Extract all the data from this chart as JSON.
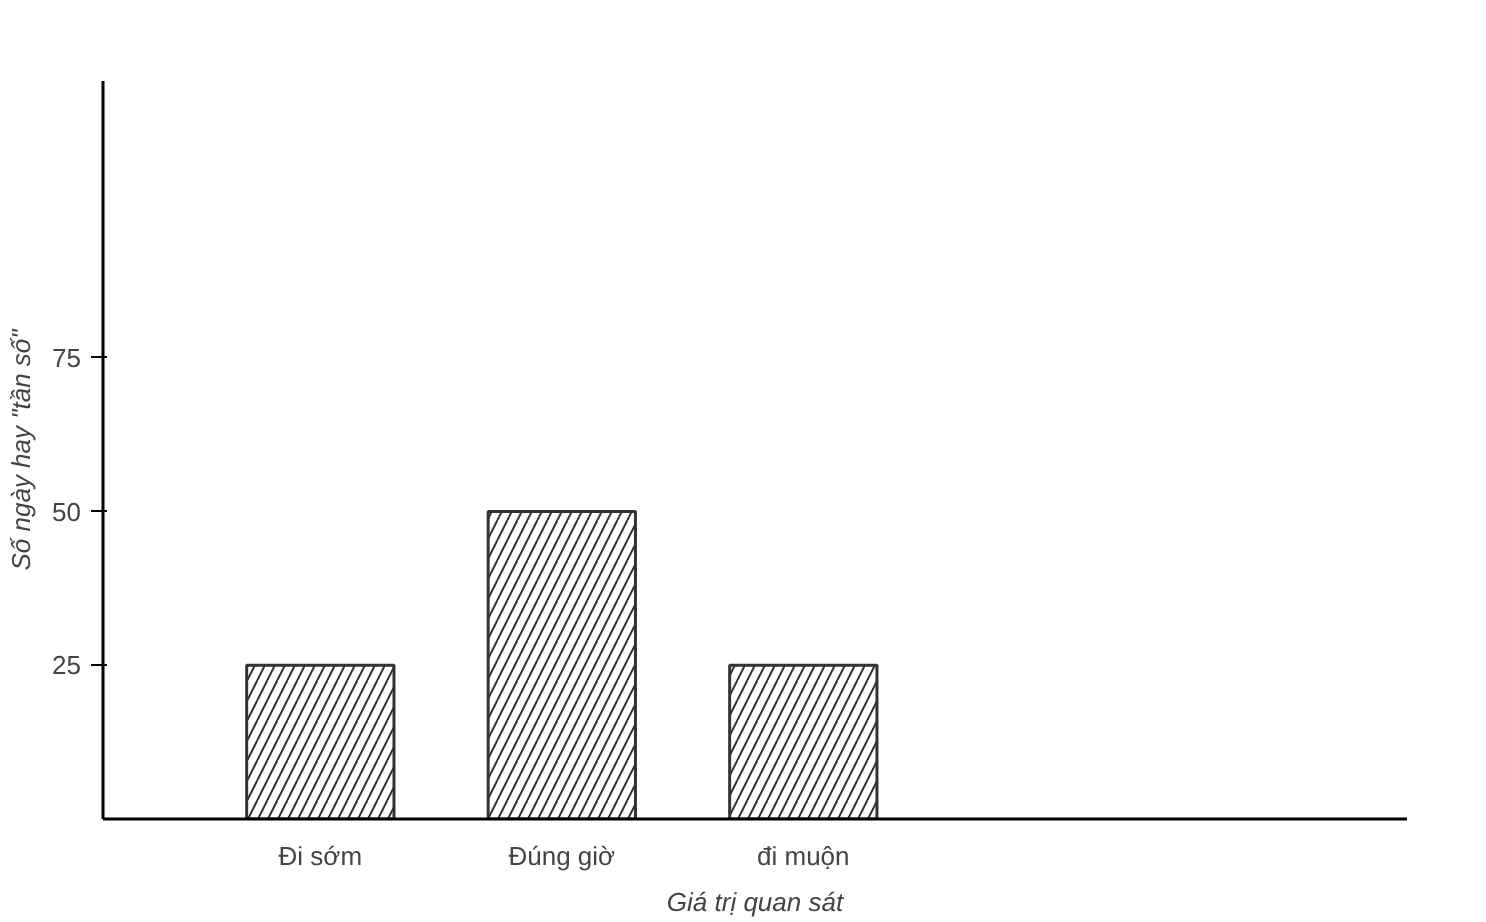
{
  "chart_data": {
    "type": "bar",
    "xlabel": "Giá trị quan sát",
    "ylabel": "Số ngày hay \"tần số\"",
    "categories": [
      "Đi sớm",
      "Đúng giờ",
      "đi muộn"
    ],
    "values": [
      25,
      50,
      25
    ],
    "color": "#333333",
    "ylim": [
      0,
      120
    ],
    "yticks": [
      25,
      50,
      75
    ],
    "grid": false
  }
}
